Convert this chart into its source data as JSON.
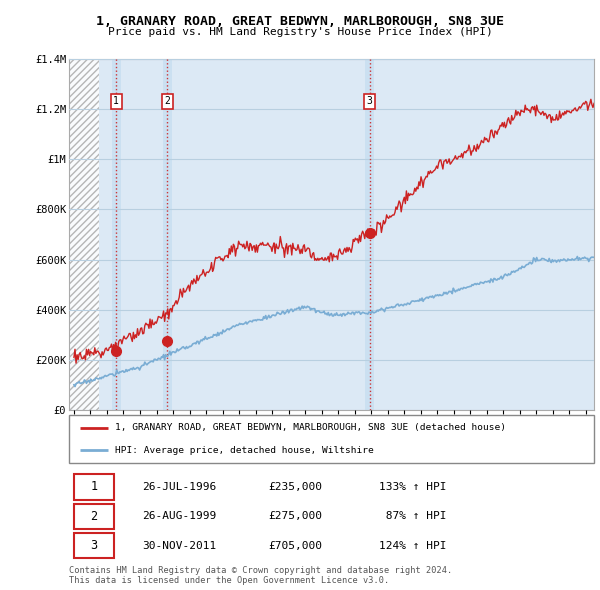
{
  "title1": "1, GRANARY ROAD, GREAT BEDWYN, MARLBOROUGH, SN8 3UE",
  "title2": "Price paid vs. HM Land Registry's House Price Index (HPI)",
  "ylim": [
    0,
    1400000
  ],
  "yticks": [
    0,
    200000,
    400000,
    600000,
    800000,
    1000000,
    1200000,
    1400000
  ],
  "ytick_labels": [
    "£0",
    "£200K",
    "£400K",
    "£600K",
    "£800K",
    "£1M",
    "£1.2M",
    "£1.4M"
  ],
  "hpi_color": "#7aadd4",
  "price_color": "#cc2222",
  "bg_plot_color": "#dce9f5",
  "sale_marker_color": "#cc2222",
  "sale_date_nums": [
    1996.558,
    1999.653,
    2011.917
  ],
  "sale_prices": [
    235000,
    275000,
    705000
  ],
  "sale_labels": [
    "1",
    "2",
    "3"
  ],
  "legend_price_label": "1, GRANARY ROAD, GREAT BEDWYN, MARLBOROUGH, SN8 3UE (detached house)",
  "legend_hpi_label": "HPI: Average price, detached house, Wiltshire",
  "table_rows": [
    [
      "1",
      "26-JUL-1996",
      "£235,000",
      "133% ↑ HPI"
    ],
    [
      "2",
      "26-AUG-1999",
      "£275,000",
      " 87% ↑ HPI"
    ],
    [
      "3",
      "30-NOV-2011",
      "£705,000",
      "124% ↑ HPI"
    ]
  ],
  "footer": "Contains HM Land Registry data © Crown copyright and database right 2024.\nThis data is licensed under the Open Government Licence v3.0.",
  "grid_color": "#b8cfe0",
  "hatch_region_end": 1995.5,
  "xlim_left": 1993.7,
  "xlim_right": 2025.5
}
